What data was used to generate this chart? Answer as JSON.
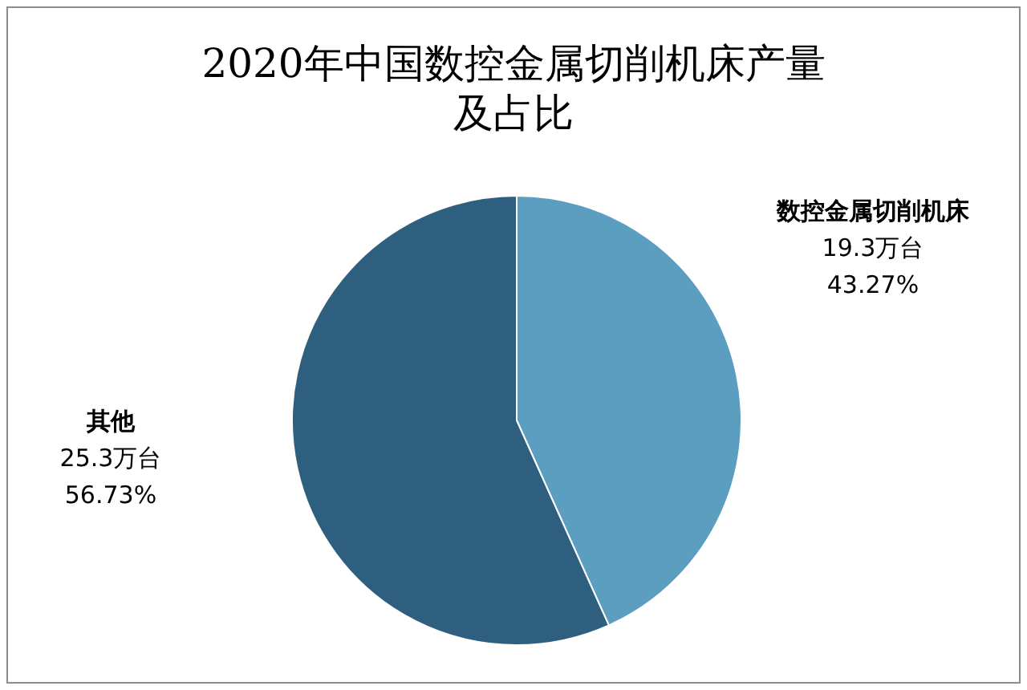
{
  "chart_data": {
    "type": "pie",
    "title": "2020年中国数控金属切削机床产量及占比",
    "categories": [
      "数控金属切削机床",
      "其他"
    ],
    "values": [
      19.3,
      25.3
    ],
    "value_labels": [
      "19.3万台\n43.27%",
      "25.3万台\n56.73%"
    ],
    "colors": [
      "#5b9ec0",
      "#2e5f7e"
    ]
  }
}
